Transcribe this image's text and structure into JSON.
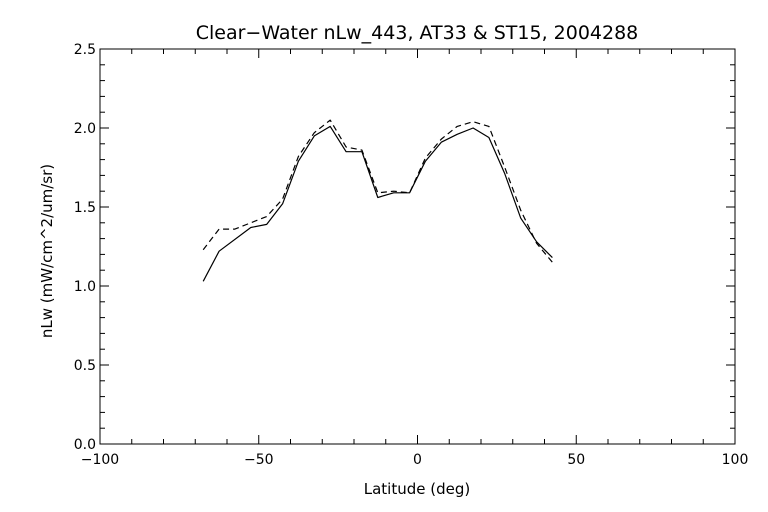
{
  "chart_data": {
    "type": "line",
    "title": "Clear−Water nLw_443, AT33 & ST15, 2004288",
    "xlabel": "Latitude (deg)",
    "ylabel": "nLw (mW/cm^2/um/sr)",
    "xlim": [
      -100,
      100
    ],
    "ylim": [
      0.0,
      2.5
    ],
    "x_ticks": [
      -100,
      -50,
      0,
      50,
      100
    ],
    "x_tick_labels": [
      "−100",
      "−50",
      "0",
      "50",
      "100"
    ],
    "y_ticks": [
      0.0,
      0.5,
      1.0,
      1.5,
      2.0,
      2.5
    ],
    "y_tick_labels": [
      "0.0",
      "0.5",
      "1.0",
      "1.5",
      "2.0",
      "2.5"
    ],
    "grid": false,
    "series": [
      {
        "style": "solid",
        "color": "#000000",
        "x": [
          -67.5,
          -62.5,
          -52.5,
          -47.5,
          -42.5,
          -37.5,
          -32.5,
          -27.5,
          -22.5,
          -17.5,
          -12.5,
          -7.5,
          -2.5,
          2.5,
          7.5,
          12.5,
          17.5,
          22.5,
          27.5,
          32.5,
          37.5,
          42.5
        ],
        "y": [
          1.03,
          1.22,
          1.37,
          1.39,
          1.52,
          1.79,
          1.95,
          2.01,
          1.85,
          1.85,
          1.56,
          1.59,
          1.59,
          1.79,
          1.91,
          1.96,
          2.0,
          1.94,
          1.71,
          1.43,
          1.28,
          1.18
        ]
      },
      {
        "style": "dashed",
        "color": "#000000",
        "x": [
          -67.5,
          -62.5,
          -57.5,
          -52.5,
          -47.5,
          -42.5,
          -37.5,
          -32.5,
          -27.5,
          -22.5,
          -17.5,
          -12.5,
          -7.5,
          -2.5,
          2.5,
          7.5,
          12.5,
          17.5,
          22.5,
          27.5,
          32.5,
          37.5,
          42.5
        ],
        "y": [
          1.23,
          1.36,
          1.36,
          1.4,
          1.44,
          1.55,
          1.82,
          1.97,
          2.05,
          1.88,
          1.86,
          1.59,
          1.6,
          1.59,
          1.81,
          1.93,
          2.01,
          2.04,
          2.01,
          1.75,
          1.48,
          1.27,
          1.15
        ]
      }
    ]
  }
}
